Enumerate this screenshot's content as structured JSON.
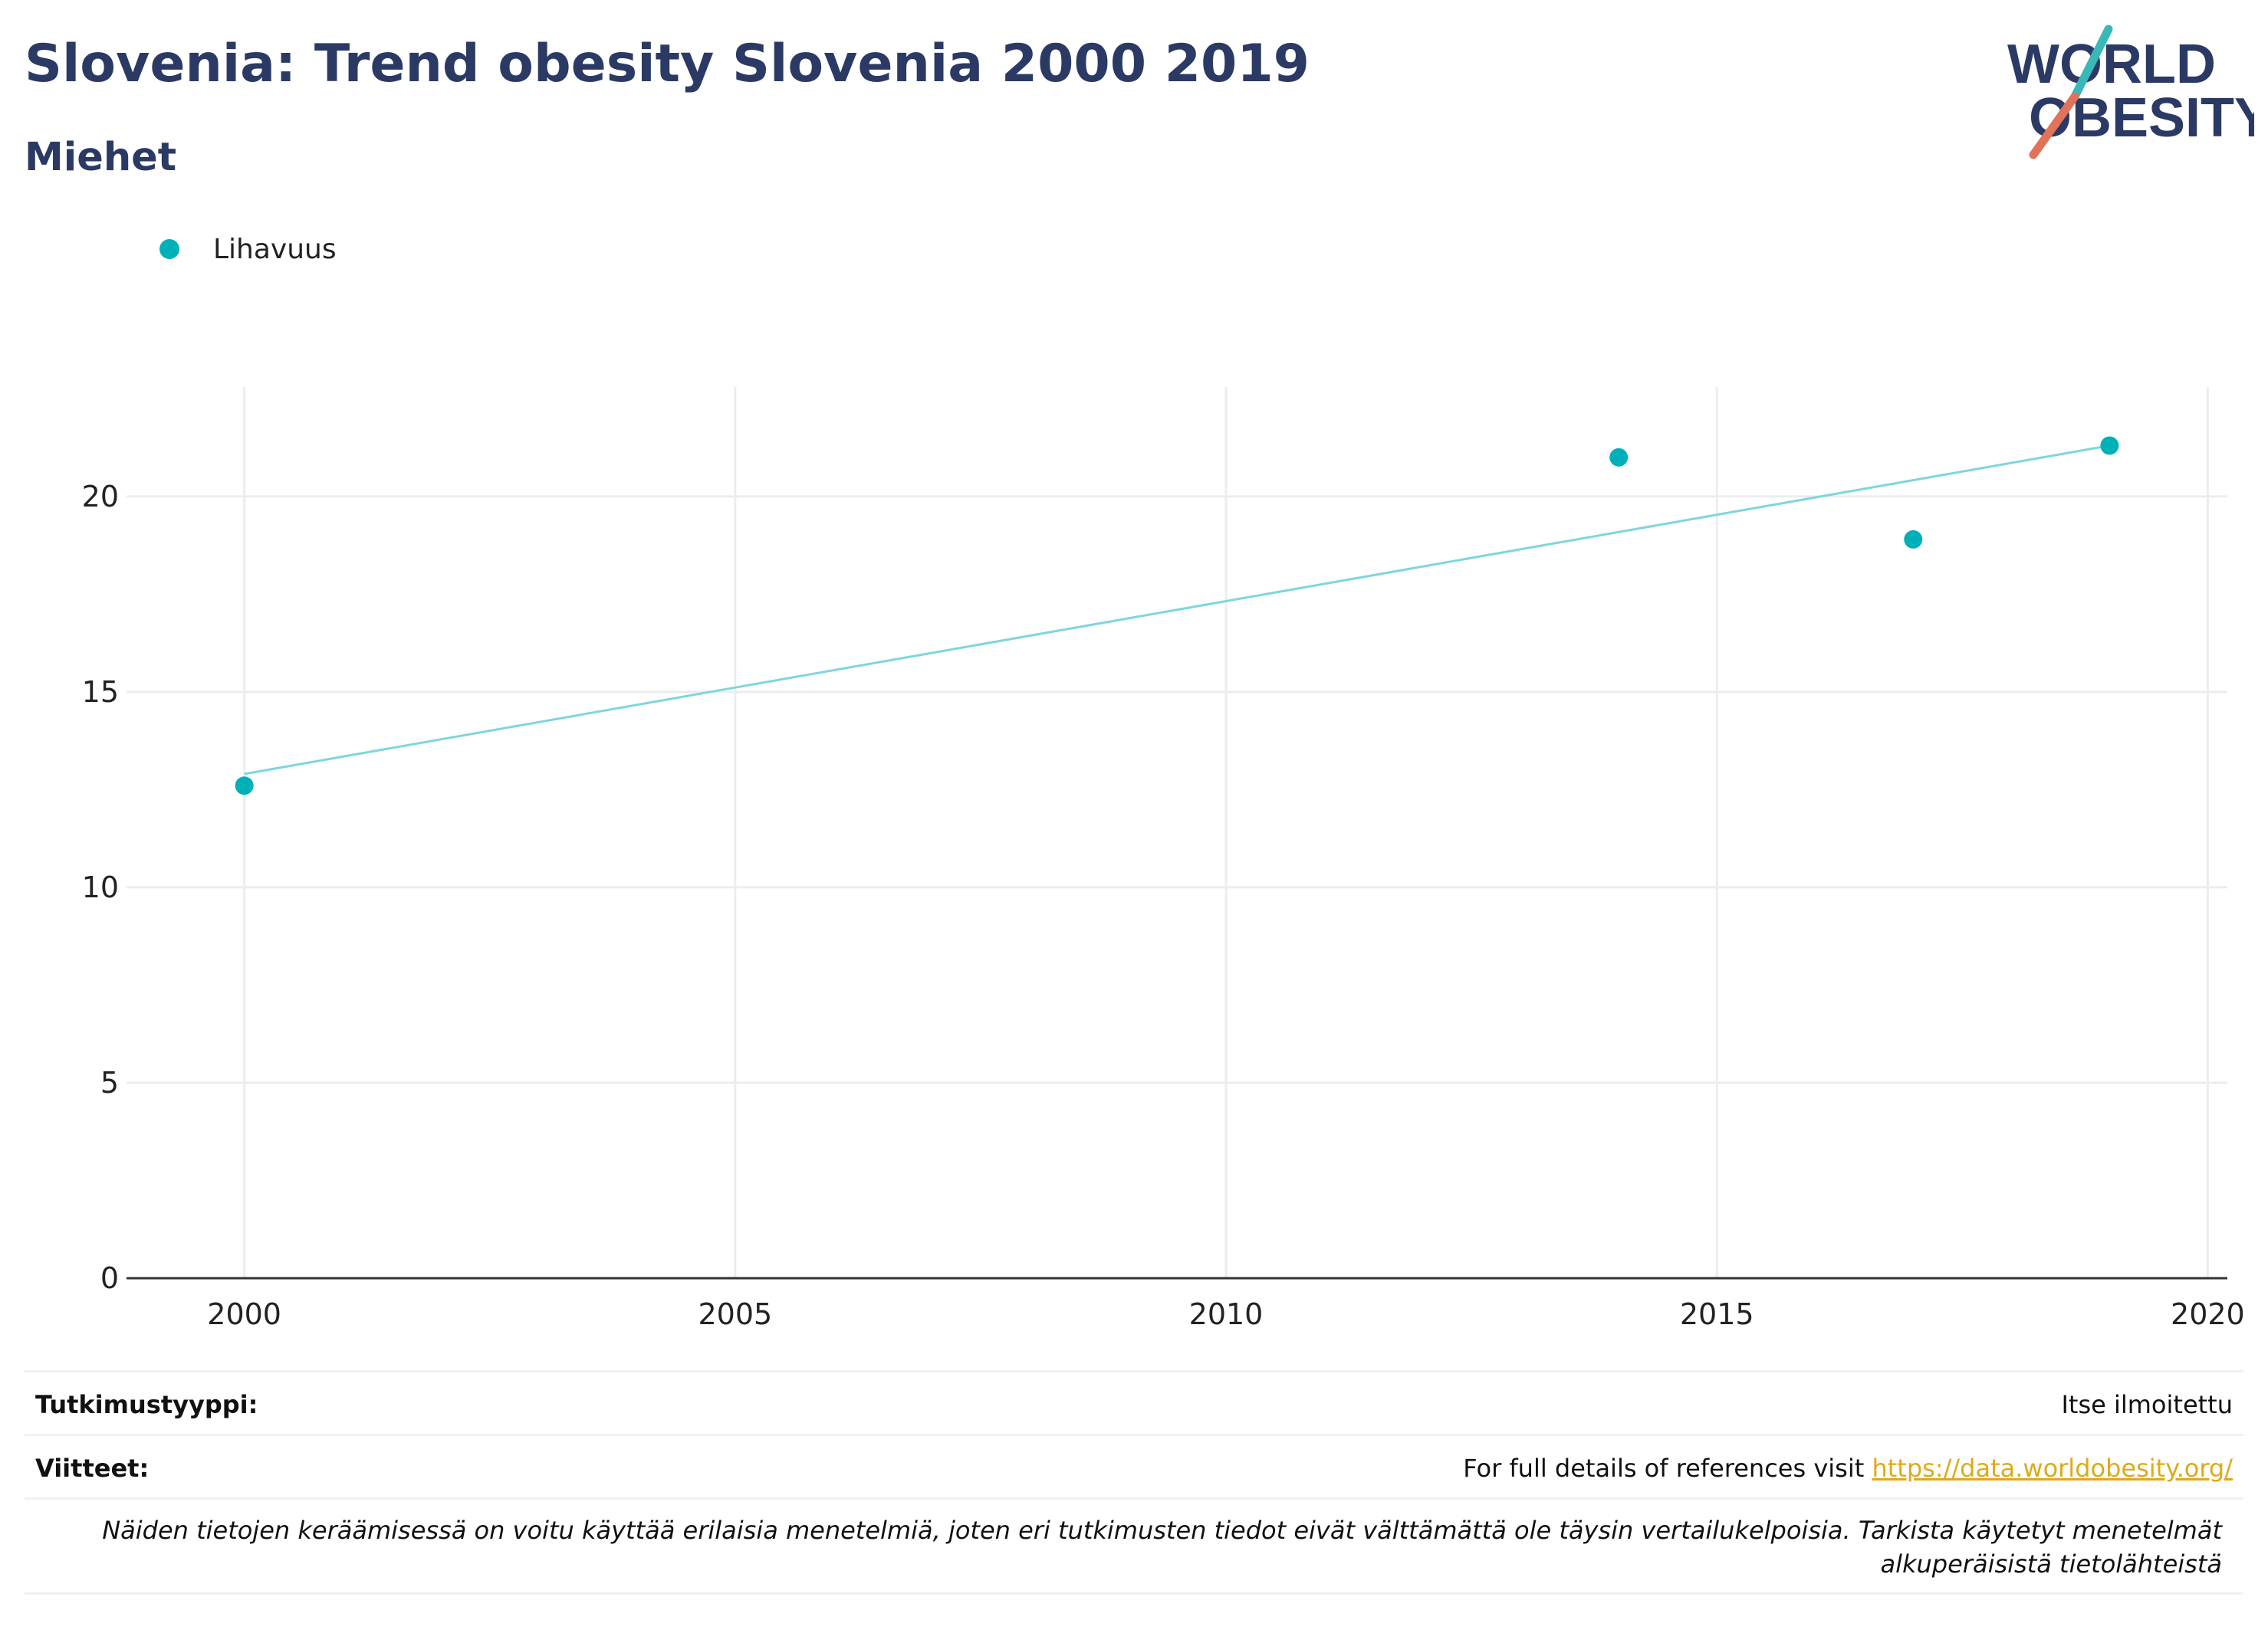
{
  "header": {
    "title": "Slovenia: Trend obesity Slovenia 2000 2019",
    "subtitle": "Miehet"
  },
  "logo": {
    "line1": "WORLD",
    "line2": "OBESITY",
    "colors": {
      "text": "#2b3a64",
      "teal": "#3ab8b8",
      "coral": "#e0735a"
    }
  },
  "legend": {
    "series_label": "Lihavuus",
    "color": "#00b0b9"
  },
  "chart_data": {
    "type": "scatter",
    "title": "",
    "xlabel": "",
    "ylabel": "",
    "xlim": [
      1998.8,
      2020.2
    ],
    "ylim": [
      0,
      22.8
    ],
    "x_ticks": [
      2000,
      2005,
      2010,
      2015,
      2020
    ],
    "y_ticks": [
      0,
      5,
      10,
      15,
      20
    ],
    "grid": true,
    "legend_position": "top-left",
    "series": [
      {
        "name": "Lihavuus",
        "color": "#00b0b9",
        "points": [
          {
            "x": 2000,
            "y": 12.6
          },
          {
            "x": 2014,
            "y": 21.0
          },
          {
            "x": 2017,
            "y": 18.9
          },
          {
            "x": 2019,
            "y": 21.3
          }
        ]
      }
    ],
    "trendline": {
      "color": "#7fd6da",
      "points": [
        {
          "x": 2000,
          "y": 12.9
        },
        {
          "x": 2019,
          "y": 21.3
        }
      ]
    }
  },
  "info": {
    "study_type_label": "Tutkimustyyppi:",
    "study_type_value": "Itse ilmoitettu",
    "references_label": "Viitteet:",
    "references_text": "For full details of references visit ",
    "references_link": "https://data.worldobesity.org/",
    "note": "Näiden tietojen keräämisessä on voitu käyttää erilaisia menetelmiä, joten eri tutkimusten tiedot eivät välttämättä ole täysin vertailukelpoisia. Tarkista käytetyt menetelmät alkuperäisistä tietolähteistä"
  }
}
